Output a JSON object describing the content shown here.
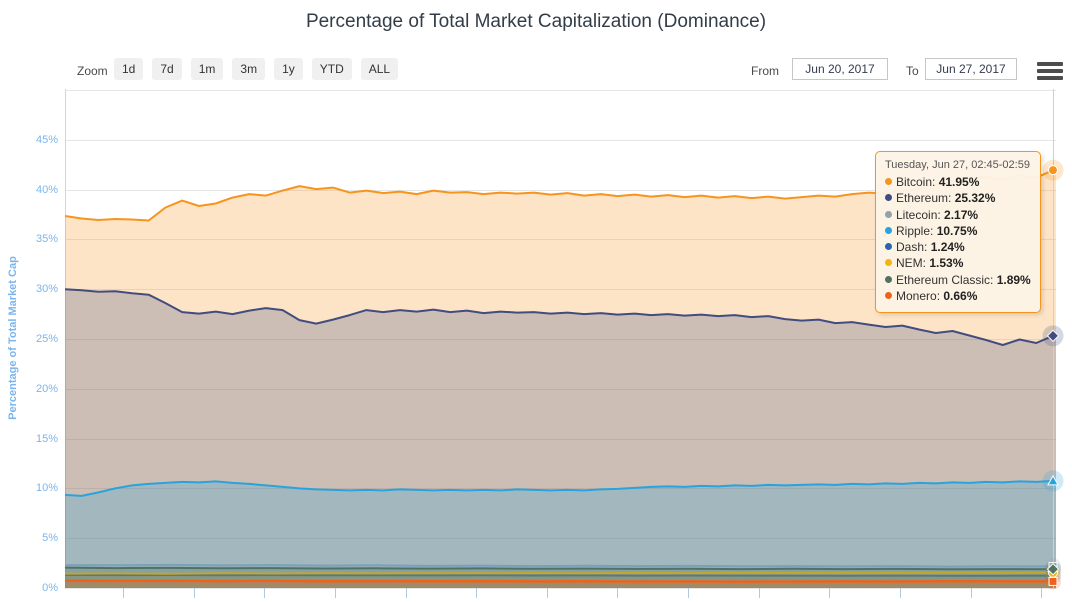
{
  "title": "Percentage of Total Market Capitalization (Dominance)",
  "range_selector": {
    "zoom_label": "Zoom",
    "buttons": [
      "1d",
      "7d",
      "1m",
      "3m",
      "1y",
      "YTD",
      "ALL"
    ],
    "from_label": "From",
    "from_value": "Jun 20, 2017",
    "to_label": "To",
    "to_value": "Jun 27, 2017"
  },
  "y_axis": {
    "title": "Percentage of Total Market Cap",
    "labels": [
      "0%",
      "5%",
      "10%",
      "15%",
      "20%",
      "25%",
      "30%",
      "35%",
      "40%",
      "45%"
    ],
    "label_color": "#7cb5ec"
  },
  "tooltip": {
    "header": "Tuesday, Jun 27, 02:45-02:59",
    "items": [
      {
        "name": "Bitcoin",
        "value": "41.95%"
      },
      {
        "name": "Ethereum",
        "value": "25.32%"
      },
      {
        "name": "Litecoin",
        "value": "2.17%"
      },
      {
        "name": "Ripple",
        "value": "10.75%"
      },
      {
        "name": "Dash",
        "value": "1.24%"
      },
      {
        "name": "NEM",
        "value": "1.53%"
      },
      {
        "name": "Ethereum Classic",
        "value": "1.89%"
      },
      {
        "name": "Monero",
        "value": "0.66%"
      }
    ]
  },
  "chart_data": {
    "type": "area",
    "title": "Percentage of Total Market Capitalization (Dominance)",
    "ylabel": "Percentage of Total Market Cap",
    "ylim": [
      0,
      50
    ],
    "x_range": [
      "Jun 20, 2017",
      "Jun 27, 2017"
    ],
    "grid": true,
    "fill_opacity": 0.25,
    "gridline_color": "#e6e6e6",
    "axis_line_color": "#ccd6eb",
    "tick_color": "#b3c7dd",
    "crosshair_color": "#cfcfcf",
    "series": [
      {
        "name": "Bitcoin",
        "color": "#f7941e",
        "marker": "circle",
        "end_value": 41.95,
        "values": [
          37.35,
          37.1,
          36.95,
          37.05,
          37.0,
          36.9,
          38.2,
          38.9,
          38.35,
          38.6,
          39.2,
          39.55,
          39.4,
          39.9,
          40.35,
          40.05,
          40.2,
          39.7,
          39.9,
          39.65,
          39.8,
          39.55,
          39.9,
          39.7,
          39.75,
          39.55,
          39.7,
          39.6,
          39.7,
          39.5,
          39.65,
          39.4,
          39.55,
          39.35,
          39.5,
          39.3,
          39.45,
          39.25,
          39.4,
          39.2,
          39.35,
          39.15,
          39.3,
          39.1,
          39.25,
          39.4,
          39.3,
          39.55,
          39.7,
          39.6,
          39.9,
          40.1,
          40.5,
          40.8,
          41.1,
          41.3,
          41.0,
          41.45,
          41.2,
          41.95
        ]
      },
      {
        "name": "Ethereum",
        "color": "#414c80",
        "marker": "diamond",
        "end_value": 25.32,
        "values": [
          30.0,
          29.9,
          29.75,
          29.8,
          29.6,
          29.45,
          28.6,
          27.7,
          27.55,
          27.75,
          27.5,
          27.85,
          28.1,
          27.9,
          26.9,
          26.55,
          26.95,
          27.4,
          27.9,
          27.7,
          27.9,
          27.75,
          27.95,
          27.7,
          27.85,
          27.6,
          27.75,
          27.65,
          27.7,
          27.55,
          27.65,
          27.5,
          27.6,
          27.45,
          27.55,
          27.4,
          27.5,
          27.35,
          27.45,
          27.3,
          27.4,
          27.2,
          27.3,
          27.0,
          26.85,
          26.95,
          26.6,
          26.7,
          26.45,
          26.2,
          26.35,
          25.95,
          25.6,
          25.8,
          25.35,
          24.9,
          24.4,
          24.95,
          24.6,
          25.32
        ]
      },
      {
        "name": "Litecoin",
        "color": "#95a0ab",
        "marker": "square",
        "end_value": 2.17,
        "values": [
          2.3,
          2.28,
          2.32,
          2.27,
          2.3,
          2.25,
          2.28,
          2.22,
          2.25,
          2.2,
          2.24,
          2.2,
          2.22,
          2.18,
          2.2,
          2.17,
          2.2,
          2.15,
          2.18,
          2.17
        ]
      },
      {
        "name": "Ripple",
        "color": "#29a3dd",
        "marker": "triangle",
        "end_value": 10.75,
        "values": [
          9.35,
          9.25,
          9.6,
          10.0,
          10.3,
          10.45,
          10.55,
          10.65,
          10.6,
          10.7,
          10.55,
          10.45,
          10.3,
          10.15,
          10.0,
          9.9,
          9.85,
          9.8,
          9.85,
          9.8,
          9.9,
          9.85,
          9.8,
          9.85,
          9.8,
          9.85,
          9.8,
          9.9,
          9.85,
          9.8,
          9.85,
          9.8,
          9.9,
          9.95,
          10.05,
          10.15,
          10.2,
          10.15,
          10.25,
          10.2,
          10.3,
          10.25,
          10.35,
          10.3,
          10.35,
          10.4,
          10.35,
          10.45,
          10.4,
          10.5,
          10.45,
          10.55,
          10.5,
          10.6,
          10.55,
          10.65,
          10.6,
          10.7,
          10.65,
          10.75
        ]
      },
      {
        "name": "Dash",
        "color": "#2a66a8",
        "marker": "triangle-down",
        "end_value": 1.24,
        "values": [
          1.32,
          1.3,
          1.31,
          1.29,
          1.3,
          1.28,
          1.29,
          1.27,
          1.28,
          1.26,
          1.27,
          1.25,
          1.26,
          1.24,
          1.25,
          1.23,
          1.24,
          1.22,
          1.23,
          1.24
        ]
      },
      {
        "name": "NEM",
        "color": "#efb614",
        "marker": "circle",
        "end_value": 1.53,
        "values": [
          1.45,
          1.47,
          1.44,
          1.48,
          1.46,
          1.49,
          1.47,
          1.5,
          1.48,
          1.51,
          1.49,
          1.52,
          1.5,
          1.53,
          1.51,
          1.54,
          1.52,
          1.55,
          1.53,
          1.53
        ]
      },
      {
        "name": "Ethereum Classic",
        "color": "#4f7363",
        "marker": "diamond",
        "end_value": 1.89,
        "values": [
          2.05,
          2.0,
          2.02,
          1.98,
          2.0,
          1.96,
          1.98,
          1.95,
          1.97,
          1.93,
          1.95,
          1.92,
          1.94,
          1.9,
          1.93,
          1.9,
          1.92,
          1.88,
          1.9,
          1.89
        ]
      },
      {
        "name": "Monero",
        "color": "#f0621c",
        "marker": "square",
        "end_value": 0.66,
        "values": [
          0.72,
          0.7,
          0.71,
          0.69,
          0.7,
          0.68,
          0.69,
          0.67,
          0.68,
          0.66,
          0.67,
          0.65,
          0.66,
          0.64,
          0.65,
          0.66,
          0.65,
          0.67,
          0.66,
          0.66
        ]
      }
    ]
  }
}
